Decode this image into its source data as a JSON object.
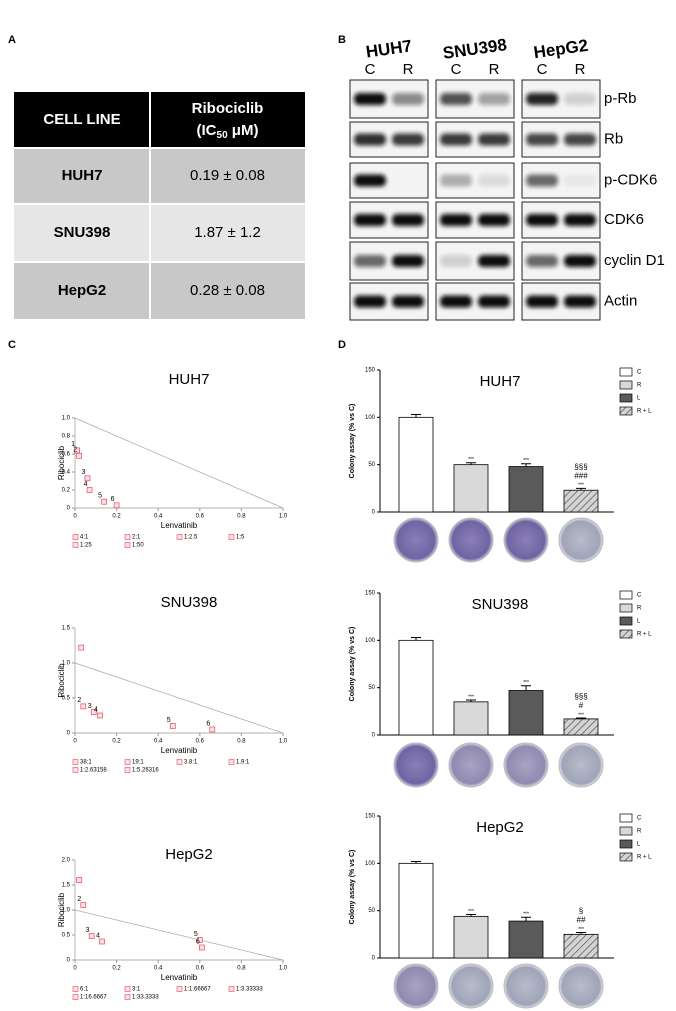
{
  "panel_labels": [
    "A",
    "B",
    "C",
    "D"
  ],
  "table": {
    "header": [
      "CELL LINE",
      {
        "line1": "Ribociclib",
        "pre": "(IC",
        "sub": "50",
        "post": " μM)"
      }
    ],
    "rows": [
      [
        "HUH7",
        "0.19 ± 0.08"
      ],
      [
        "SNU398",
        "1.87 ± 1.2"
      ],
      [
        "HepG2",
        "0.28 ± 0.08"
      ]
    ]
  },
  "blot": {
    "cell_lines": [
      "HUH7",
      "SNU398",
      "HepG2"
    ],
    "lanes": [
      "C",
      "R"
    ],
    "proteins": [
      "p-Rb",
      "Rb",
      "p-CDK6",
      "CDK6",
      "cyclin D1",
      "Actin"
    ]
  },
  "chart_data": [
    {
      "type": "isobologram",
      "title": "HUH7",
      "x_label": "Lenvatinib",
      "y_label": "Ribociclib",
      "x": [
        0.01,
        0.02,
        0.06,
        0.07,
        0.14,
        0.2
      ],
      "y": [
        0.64,
        0.58,
        0.33,
        0.2,
        0.07,
        0.03
      ],
      "point_labels": [
        "1",
        "2",
        "3",
        "4",
        "5",
        "6"
      ],
      "color": "#e05050",
      "additivity_line": {
        "x": [
          0,
          1
        ],
        "y": [
          1,
          0
        ]
      },
      "legend": [
        "4:1",
        "2:1",
        "1:2.5",
        "1:5",
        "1:25",
        "1:50"
      ],
      "xlim": [
        0,
        1
      ],
      "xticks": [
        0,
        0.2,
        0.4,
        0.6,
        0.8,
        {
          "value": 1,
          "label": "1.0"
        }
      ],
      "ylim": [
        0,
        1
      ],
      "yticks": [
        0,
        0.2,
        0.4,
        0.6,
        0.8,
        {
          "value": 1,
          "label": "1.0"
        }
      ]
    },
    {
      "type": "isobologram",
      "title": "SNU398",
      "x_label": "Lenvatinib",
      "y_label": "Ribociclib",
      "x": [
        0.03,
        0.04,
        0.09,
        0.12,
        0.47,
        0.66
      ],
      "y": [
        1.22,
        0.38,
        0.3,
        0.25,
        0.1,
        0.05
      ],
      "point_labels": [
        null,
        "2",
        "3",
        "4",
        "5",
        "6"
      ],
      "color": "#e05050",
      "additivity_line": {
        "x": [
          0,
          1
        ],
        "y": [
          1,
          0
        ]
      },
      "legend": [
        "38:1",
        "19:1",
        "3.8:1",
        "1.9:1",
        "1:2.63158",
        "1:5.26316"
      ],
      "xlim": [
        0,
        1
      ],
      "xticks": [
        0,
        0.2,
        0.4,
        0.6,
        0.8,
        {
          "value": 1,
          "label": "1.0"
        }
      ],
      "ylim": [
        0,
        1.5
      ],
      "yticks": [
        0,
        0.5,
        {
          "value": 1,
          "label": "1.0"
        },
        1.5
      ]
    },
    {
      "type": "isobologram",
      "title": "HepG2",
      "x_label": "Lenvatinib",
      "y_label": "Ribociclib",
      "x": [
        0.02,
        0.04,
        0.08,
        0.13,
        0.6,
        0.61
      ],
      "y": [
        1.6,
        1.1,
        0.48,
        0.37,
        0.4,
        0.25
      ],
      "point_labels": [
        null,
        "2",
        "3",
        "4",
        "5",
        "6"
      ],
      "color": "#e05050",
      "additivity_line": {
        "x": [
          0,
          1
        ],
        "y": [
          1,
          0
        ]
      },
      "legend": [
        "6:1",
        "3:1",
        "1:1.66667",
        "1:3.33333",
        "1:16.6667",
        "1:33.3333"
      ],
      "xlim": [
        0,
        1
      ],
      "xticks": [
        0,
        0.2,
        0.4,
        0.6,
        0.8,
        {
          "value": 1,
          "label": "1.0"
        }
      ],
      "ylim": [
        0,
        2
      ],
      "yticks": [
        0,
        0.5,
        {
          "value": 1,
          "label": "1.0"
        },
        1.5,
        {
          "value": 2,
          "label": "2.0"
        }
      ]
    },
    {
      "type": "bar",
      "title": "HUH7",
      "y_label": "Colony assay (% vs C)",
      "categories": [
        "C",
        "R",
        "L",
        "R + L"
      ],
      "values": [
        100,
        50,
        48,
        23
      ],
      "errors": [
        3,
        2,
        3,
        2
      ],
      "colors": [
        "#ffffff",
        "#d9d9d9",
        "#5a5a5a",
        "hatch"
      ],
      "stars": [
        null,
        "***",
        "***",
        "***"
      ],
      "vs_L": [
        null,
        null,
        null,
        "###"
      ],
      "vs_R": [
        null,
        null,
        null,
        "§§§"
      ],
      "ylim": [
        0,
        150
      ],
      "yticks": [
        0,
        50,
        100,
        150
      ]
    },
    {
      "type": "bar",
      "title": "SNU398",
      "y_label": "Colony assay (% vs C)",
      "categories": [
        "C",
        "R",
        "L",
        "R + L"
      ],
      "values": [
        100,
        35,
        47,
        17
      ],
      "errors": [
        3,
        2,
        5,
        1
      ],
      "colors": [
        "#ffffff",
        "#d9d9d9",
        "#5a5a5a",
        "hatch"
      ],
      "stars": [
        null,
        "***",
        "***",
        "***"
      ],
      "vs_L": [
        null,
        null,
        null,
        "#"
      ],
      "vs_R": [
        null,
        null,
        null,
        "§§§"
      ],
      "ylim": [
        0,
        150
      ],
      "yticks": [
        0,
        50,
        100,
        150
      ]
    },
    {
      "type": "bar",
      "title": "HepG2",
      "y_label": "Colony assay (% vs C)",
      "categories": [
        "C",
        "R",
        "L",
        "R + L"
      ],
      "values": [
        100,
        44,
        39,
        25
      ],
      "errors": [
        2,
        2,
        4,
        2
      ],
      "colors": [
        "#ffffff",
        "#d9d9d9",
        "#5a5a5a",
        "hatch"
      ],
      "stars": [
        null,
        "***",
        "***",
        "***"
      ],
      "vs_L": [
        null,
        null,
        null,
        "##"
      ],
      "vs_R": [
        null,
        null,
        null,
        "§"
      ],
      "ylim": [
        0,
        150
      ],
      "yticks": [
        0,
        50,
        100,
        150
      ]
    }
  ]
}
